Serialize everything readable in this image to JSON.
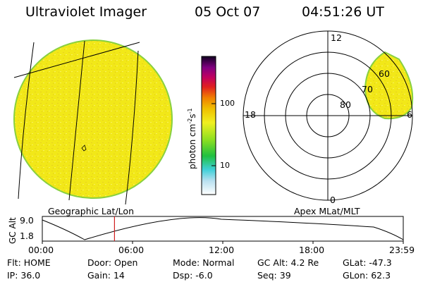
{
  "header": {
    "title": "Ultraviolet Imager",
    "date": "05 Oct 07",
    "time": "04:51:26 UT"
  },
  "colorbar": {
    "unit": "photon cm",
    "unit_exp1": "-2",
    "unit_mid": "s",
    "unit_exp2": "-1",
    "ticks": [
      "100",
      "10"
    ]
  },
  "left_panel": {
    "caption": "Geographic Lat/Lon"
  },
  "right_panel": {
    "caption": "Apex MLat/MLT",
    "mlt_labels": [
      "12",
      "18",
      "6",
      "0"
    ],
    "lat_labels": [
      "60",
      "70",
      "80"
    ]
  },
  "altitude_plot": {
    "ylabel": "GC Alt",
    "yticks": [
      "9.0",
      "1.8"
    ],
    "xticks": [
      "00:00",
      "06:00",
      "12:00",
      "18:00",
      "23:59"
    ],
    "current_time_fraction": 0.2
  },
  "status": {
    "row1": [
      {
        "label": "Flt:",
        "value": "HOME"
      },
      {
        "label": "Door:",
        "value": "Open"
      },
      {
        "label": "Mode:",
        "value": "Normal"
      },
      {
        "label": "GC Alt:",
        "value": "4.2 Re"
      },
      {
        "label": "GLat:",
        "value": "-47.3"
      }
    ],
    "row2": [
      {
        "label": "IP:",
        "value": "36.0"
      },
      {
        "label": "Gain:",
        "value": "14"
      },
      {
        "label": "Dsp:",
        "value": "-6.0"
      },
      {
        "label": "Seq:",
        "value": "39"
      },
      {
        "label": "GLon:",
        "value": "62.3"
      }
    ]
  },
  "colors": {
    "disk_fill": "#f2e818",
    "disk_edge": "#88d040",
    "cursor_line": "#d02020"
  }
}
